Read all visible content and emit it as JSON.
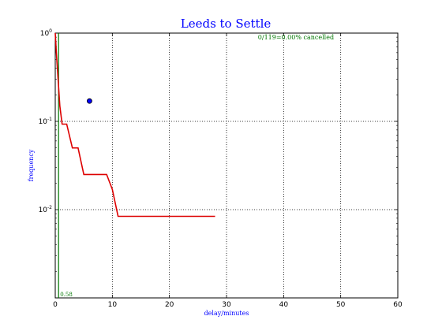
{
  "colors": {
    "title": "#0000ff",
    "axis_label": "#0000ff",
    "survival_line": "#dd0000",
    "mean_line": "#007700",
    "annotation": "#007700",
    "marker_fill": "#0000ff",
    "grid": "#000000"
  },
  "chart_data": {
    "type": "line",
    "title": "Leeds to Settle",
    "xlabel": "delay/minutes",
    "ylabel": "frequency",
    "xlim": [
      0,
      60
    ],
    "ylim": [
      0.001,
      1
    ],
    "yscale": "log",
    "grid": true,
    "x_ticks": [
      0,
      10,
      20,
      30,
      40,
      50,
      60
    ],
    "y_ticks": [
      {
        "value": 1,
        "base": "10",
        "exp": "0"
      },
      {
        "value": 0.1,
        "base": "10",
        "exp": "-1"
      },
      {
        "value": 0.01,
        "base": "10",
        "exp": "-2"
      }
    ],
    "series": [
      {
        "kind": "step-line",
        "points": [
          [
            0,
            1.0
          ],
          [
            0.2,
            0.6
          ],
          [
            0.5,
            0.3
          ],
          [
            0.8,
            0.15
          ],
          [
            1.2,
            0.093
          ],
          [
            2.0,
            0.093
          ],
          [
            3.0,
            0.05
          ],
          [
            4.0,
            0.05
          ],
          [
            5.0,
            0.025
          ],
          [
            9.0,
            0.025
          ],
          [
            10.0,
            0.017
          ],
          [
            11.0,
            0.0084
          ],
          [
            28.0,
            0.0084
          ]
        ]
      }
    ],
    "mean_line": {
      "x": 0.58,
      "label": "0.58"
    },
    "marker": {
      "x": 6.0,
      "y": 0.17
    },
    "annotation": {
      "text": "0/119=0.00% cancelled",
      "x": 35.5,
      "y": 0.85
    }
  }
}
